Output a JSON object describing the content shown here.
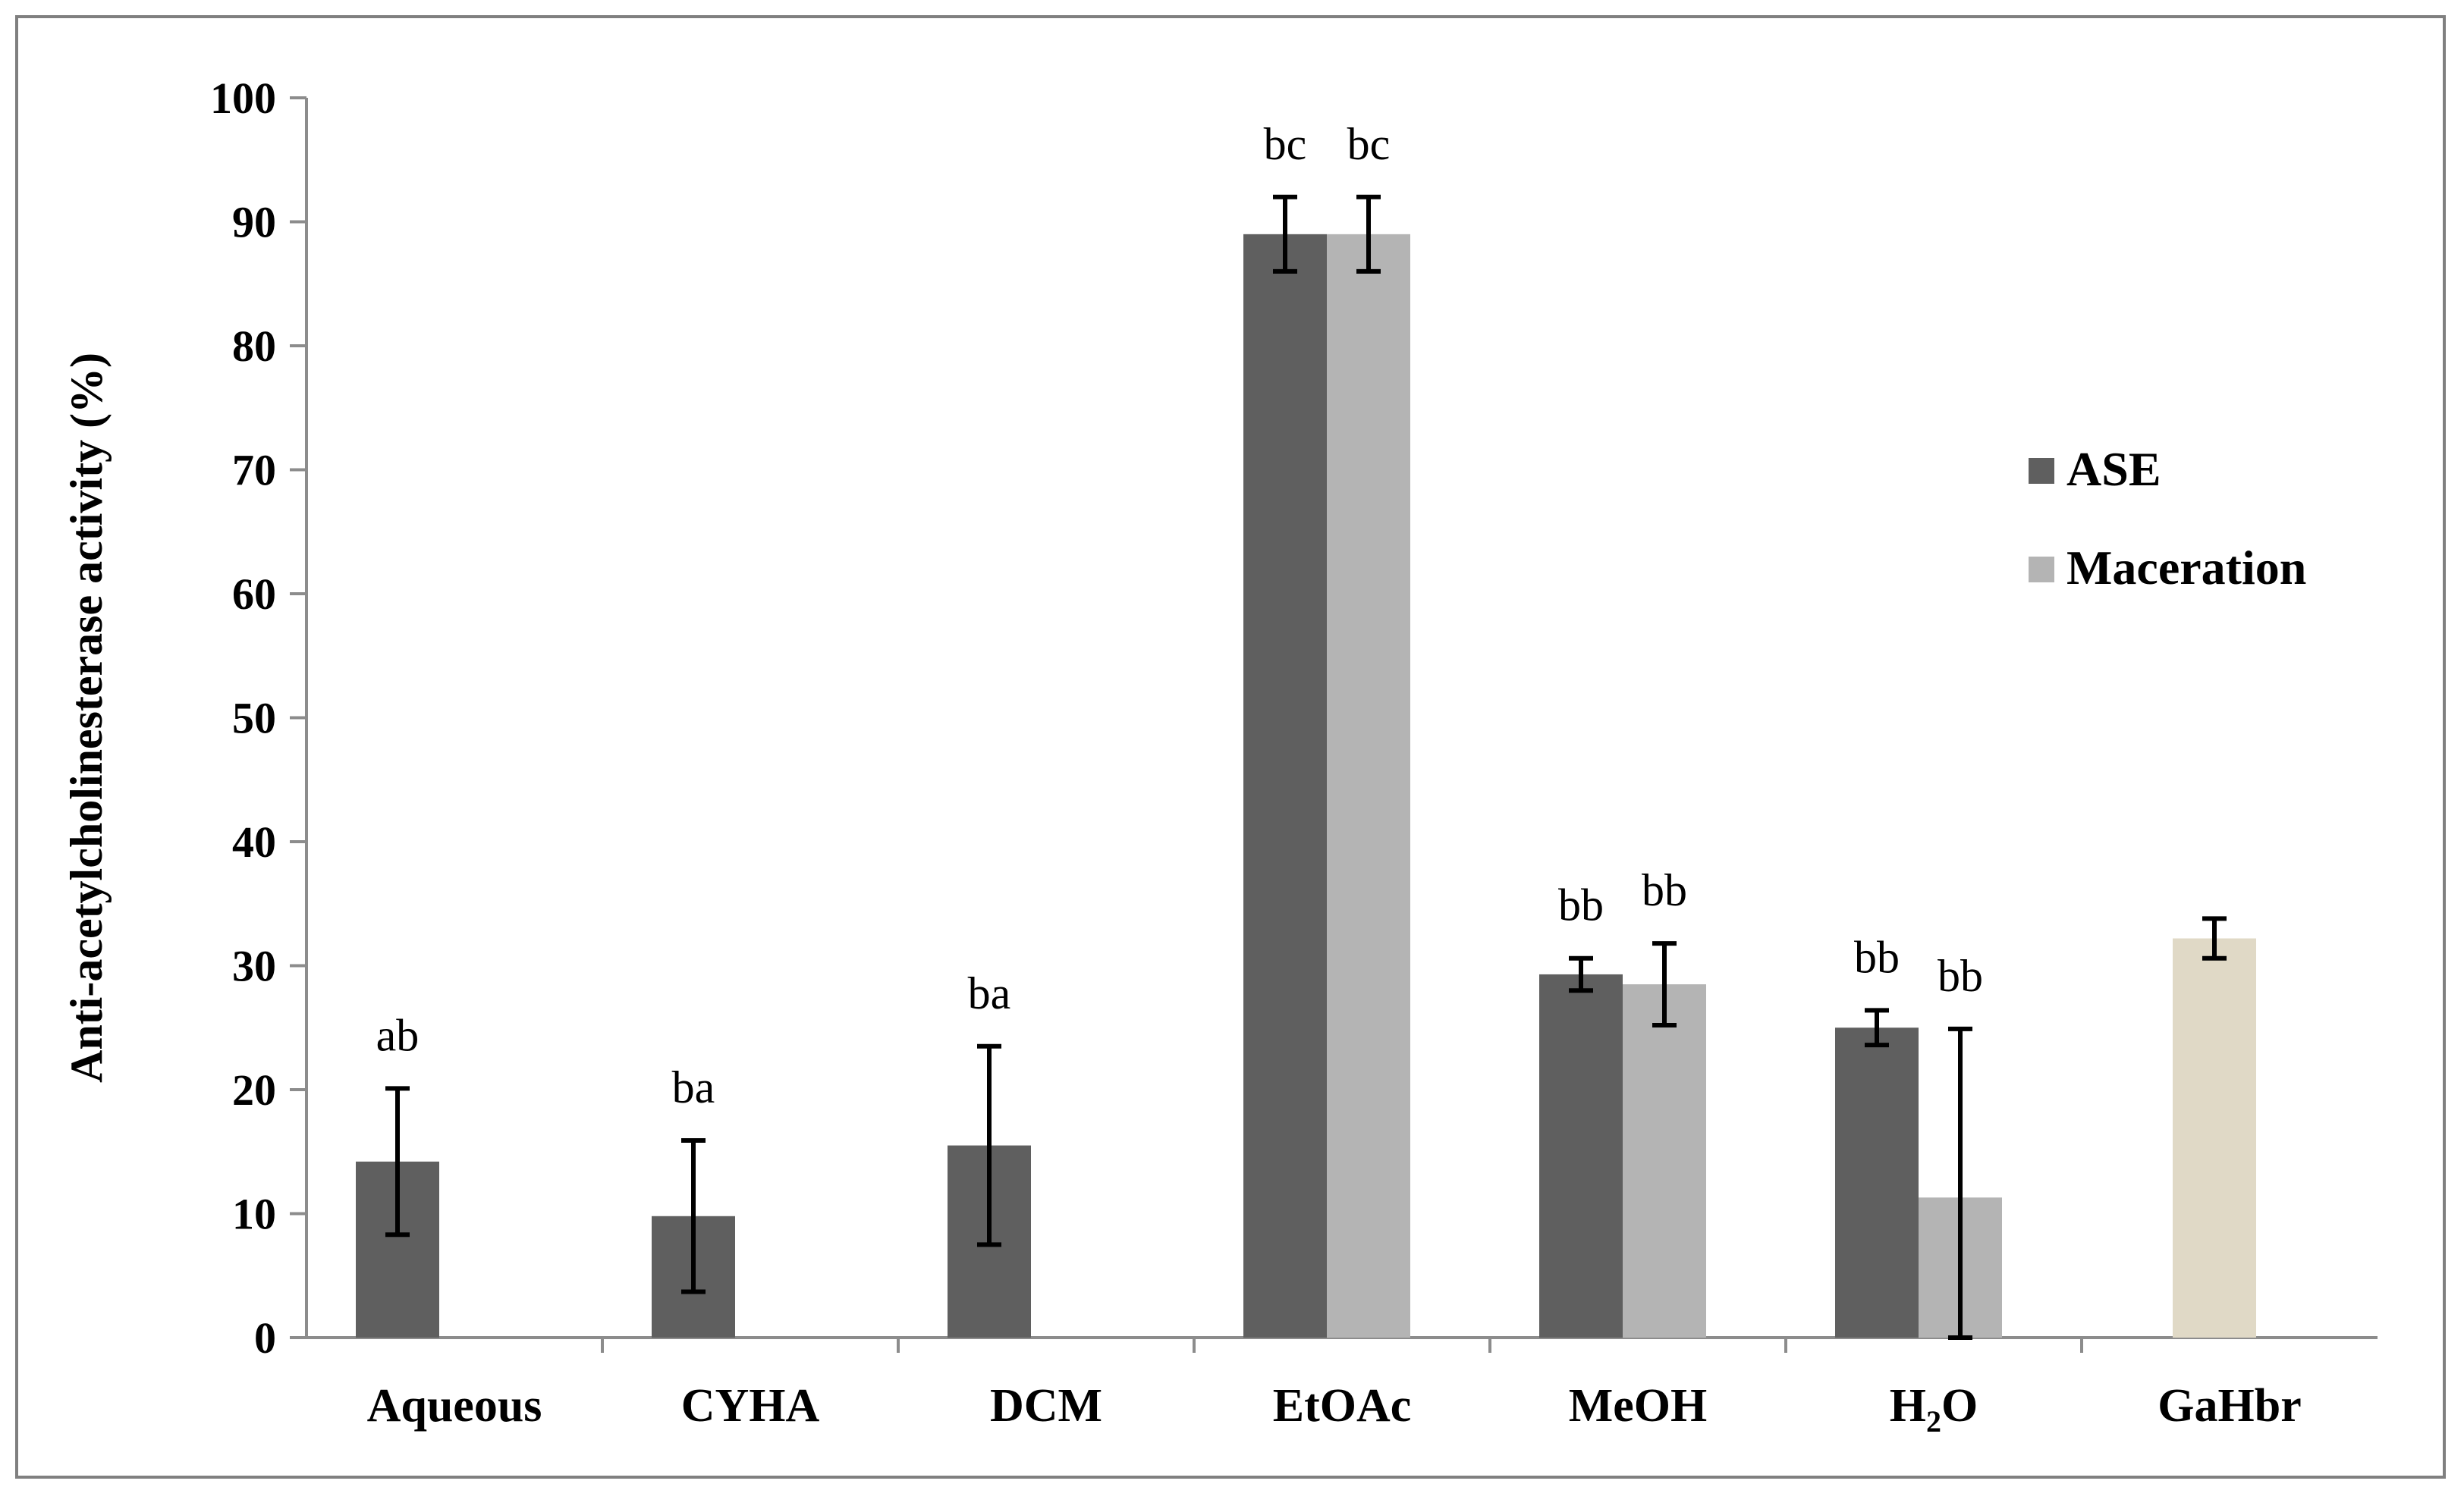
{
  "chart_data": {
    "type": "bar",
    "title": "",
    "xlabel": "",
    "ylabel": "Anti-acetylcholinesterase activity (%)",
    "ylim": [
      0,
      100
    ],
    "yticks": [
      0,
      10,
      20,
      30,
      40,
      50,
      60,
      70,
      80,
      90,
      100
    ],
    "grid": false,
    "legend_position": "right",
    "categories": [
      "Aqueous",
      "CYHA",
      "DCM",
      "EtOAc",
      "MeOH",
      "H2O",
      "GaHbr"
    ],
    "category_display": {
      "H2O": {
        "base": "H",
        "sub": "2",
        "tail": "O"
      }
    },
    "series": [
      {
        "name": "ASE",
        "color": "#5f5f5f",
        "values": [
          14.2,
          9.8,
          15.5,
          89.0,
          29.3,
          25.0,
          null
        ],
        "errors": [
          5.9,
          6.1,
          8.0,
          3.0,
          1.3,
          1.4,
          null
        ],
        "labels": [
          "ab",
          "ba",
          "ba",
          "bc",
          "bb",
          "bb",
          null
        ]
      },
      {
        "name": "Maceration",
        "color": "#b4b4b4",
        "values": [
          null,
          null,
          null,
          89.0,
          28.5,
          11.3,
          null
        ],
        "errors": [
          null,
          null,
          null,
          3.0,
          3.3,
          13.6,
          null
        ],
        "labels": [
          null,
          null,
          null,
          "bc",
          "bb",
          "bb",
          null
        ]
      },
      {
        "name": "GaHbr",
        "color": "#e0d9c6",
        "values": [
          null,
          null,
          null,
          null,
          null,
          null,
          32.2
        ],
        "errors": [
          null,
          null,
          null,
          null,
          null,
          null,
          1.6
        ],
        "labels": [
          null,
          null,
          null,
          null,
          null,
          null,
          null
        ],
        "in_legend": false
      }
    ]
  }
}
